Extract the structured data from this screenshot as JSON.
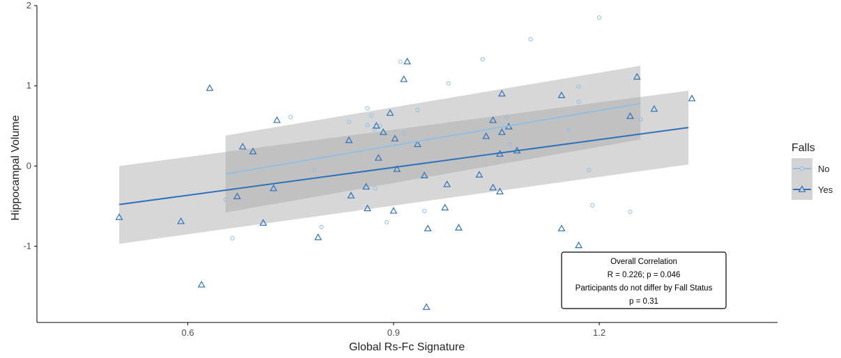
{
  "chart_data": {
    "type": "scatter",
    "xlabel": "Global Rs-Fc Signature",
    "ylabel": "Hippocampal Volume",
    "xlim": [
      0.38,
      1.46
    ],
    "ylim": [
      -1.95,
      2.0
    ],
    "x_ticks": [
      0.6,
      0.9,
      1.2
    ],
    "x_tick_labels": [
      "0.6",
      "0.9",
      "1.2"
    ],
    "y_ticks": [
      -1,
      0,
      1,
      2
    ],
    "y_tick_labels": [
      "-1",
      "0",
      "1",
      "2"
    ],
    "grid": false,
    "legend": {
      "title": "Falls",
      "position": "right"
    },
    "series": [
      {
        "name": "No",
        "marker": "circle",
        "color": "#8fc0e4",
        "points": [
          [
            0.665,
            -0.9
          ],
          [
            0.655,
            -0.42
          ],
          [
            0.75,
            0.61
          ],
          [
            0.785,
            -0.05
          ],
          [
            0.795,
            -0.76
          ],
          [
            0.835,
            0.55
          ],
          [
            0.862,
            0.72
          ],
          [
            0.862,
            0.51
          ],
          [
            0.868,
            0.63
          ],
          [
            0.872,
            0.46
          ],
          [
            0.88,
            0.5
          ],
          [
            0.873,
            -0.28
          ],
          [
            0.89,
            -0.7
          ],
          [
            0.91,
            1.3
          ],
          [
            0.915,
            0.41
          ],
          [
            0.935,
            0.7
          ],
          [
            0.945,
            -0.56
          ],
          [
            0.98,
            1.03
          ],
          [
            1.03,
            1.33
          ],
          [
            1.065,
            0.61
          ],
          [
            1.07,
            0.27
          ],
          [
            1.1,
            1.58
          ],
          [
            1.155,
            0.45
          ],
          [
            1.17,
            0.99
          ],
          [
            1.17,
            0.8
          ],
          [
            1.185,
            -0.05
          ],
          [
            1.19,
            -0.49
          ],
          [
            1.2,
            1.85
          ],
          [
            1.245,
            -0.57
          ],
          [
            1.26,
            0.58
          ]
        ],
        "fit": {
          "x": [
            0.655,
            1.26
          ],
          "y": [
            -0.1,
            0.78
          ]
        },
        "band": {
          "lower": [
            -0.58,
            0.33
          ],
          "upper": [
            0.38,
            1.25
          ]
        }
      },
      {
        "name": "Yes",
        "marker": "triangle",
        "color": "#2b72b8",
        "points": [
          [
            0.5,
            -0.64
          ],
          [
            0.59,
            -0.69
          ],
          [
            0.62,
            -1.48
          ],
          [
            0.632,
            0.97
          ],
          [
            0.672,
            -0.38
          ],
          [
            0.68,
            0.24
          ],
          [
            0.695,
            0.18
          ],
          [
            0.71,
            -0.71
          ],
          [
            0.725,
            -0.28
          ],
          [
            0.73,
            0.57
          ],
          [
            0.79,
            -0.89
          ],
          [
            0.835,
            0.32
          ],
          [
            0.838,
            -0.37
          ],
          [
            0.86,
            -0.26
          ],
          [
            0.862,
            -0.53
          ],
          [
            0.875,
            0.5
          ],
          [
            0.878,
            0.1
          ],
          [
            0.885,
            0.42
          ],
          [
            0.895,
            0.66
          ],
          [
            0.9,
            -0.56
          ],
          [
            0.902,
            0.34
          ],
          [
            0.905,
            -0.04
          ],
          [
            0.915,
            1.08
          ],
          [
            0.92,
            1.3
          ],
          [
            0.935,
            0.27
          ],
          [
            0.945,
            -0.12
          ],
          [
            0.948,
            -1.76
          ],
          [
            0.95,
            -0.78
          ],
          [
            0.975,
            -0.52
          ],
          [
            0.978,
            -0.23
          ],
          [
            0.995,
            -0.77
          ],
          [
            1.025,
            -0.11
          ],
          [
            1.035,
            0.37
          ],
          [
            1.045,
            0.57
          ],
          [
            1.045,
            -0.27
          ],
          [
            1.055,
            0.15
          ],
          [
            1.055,
            -0.32
          ],
          [
            1.058,
            0.42
          ],
          [
            1.058,
            0.9
          ],
          [
            1.068,
            0.49
          ],
          [
            1.08,
            0.19
          ],
          [
            1.145,
            -0.78
          ],
          [
            1.145,
            0.88
          ],
          [
            1.17,
            -0.99
          ],
          [
            1.245,
            0.62
          ],
          [
            1.255,
            1.11
          ],
          [
            1.28,
            0.71
          ],
          [
            1.335,
            0.84
          ]
        ],
        "fit": {
          "x": [
            0.5,
            1.33
          ],
          "y": [
            -0.48,
            0.48
          ]
        },
        "band": {
          "lower": [
            -0.97,
            0.02
          ],
          "upper": [
            0.0,
            0.94
          ]
        }
      }
    ],
    "annotation": {
      "lines": [
        "Overall Correlation",
        "R = 0.226; p = 0.046",
        "Participants do not differ by Fall Status",
        "p = 0.31"
      ]
    }
  }
}
